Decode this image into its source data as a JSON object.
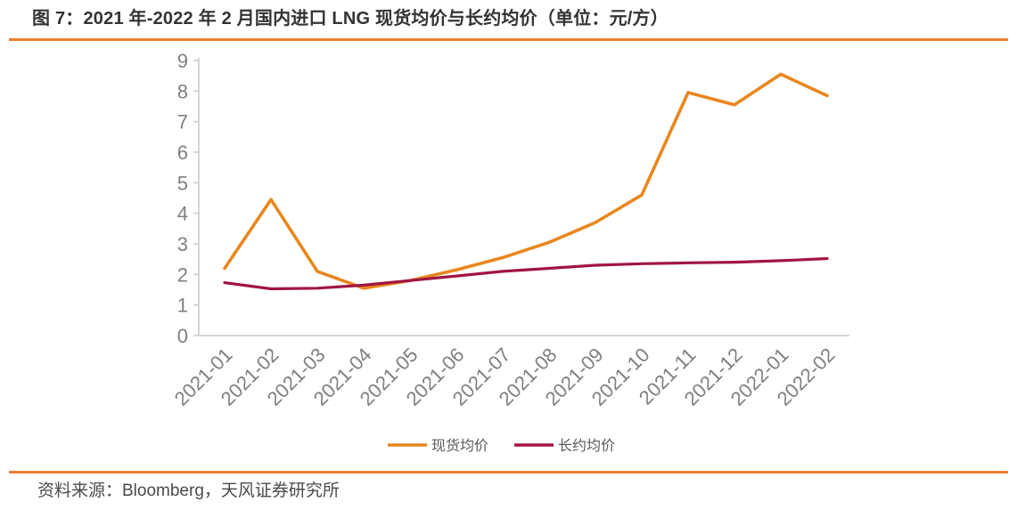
{
  "header": {
    "title": "图 7：2021 年-2022 年 2 月国内进口 LNG 现货均价与长约均价（单位：元/方）"
  },
  "footer": {
    "source": "资料来源：Bloomberg，天风证券研究所"
  },
  "colors": {
    "accent_rule": "#ED7D31",
    "spot_line": "#E8871E",
    "long_line": "#A11543",
    "axis_line": "#C9C9C9",
    "tick_label": "#7F7F7F",
    "legend_text": "#595959"
  },
  "chart_data": {
    "type": "line",
    "title": "2021 年-2022 年 2 月国内进口 LNG 现货均价与长约均价（单位：元/方）",
    "xlabel": "",
    "ylabel": "",
    "ylim": [
      0,
      9
    ],
    "yticks": [
      0,
      1,
      2,
      3,
      4,
      5,
      6,
      7,
      8,
      9
    ],
    "grid": false,
    "legend_position": "bottom",
    "categories": [
      "2021-01",
      "2021-02",
      "2021-03",
      "2021-04",
      "2021-05",
      "2021-06",
      "2021-07",
      "2021-08",
      "2021-09",
      "2021-10",
      "2021-11",
      "2021-12",
      "2022-01",
      "2022-02"
    ],
    "series": [
      {
        "name": "现货均价",
        "color": "#E8871E",
        "values": [
          2.2,
          4.45,
          2.1,
          1.55,
          1.8,
          2.15,
          2.55,
          3.05,
          3.7,
          4.6,
          7.95,
          7.55,
          8.55,
          7.85
        ]
      },
      {
        "name": "长约均价",
        "color": "#A11543",
        "values": [
          1.73,
          1.53,
          1.55,
          1.65,
          1.8,
          1.95,
          2.1,
          2.2,
          2.3,
          2.35,
          2.38,
          2.4,
          2.45,
          2.52
        ]
      }
    ]
  }
}
